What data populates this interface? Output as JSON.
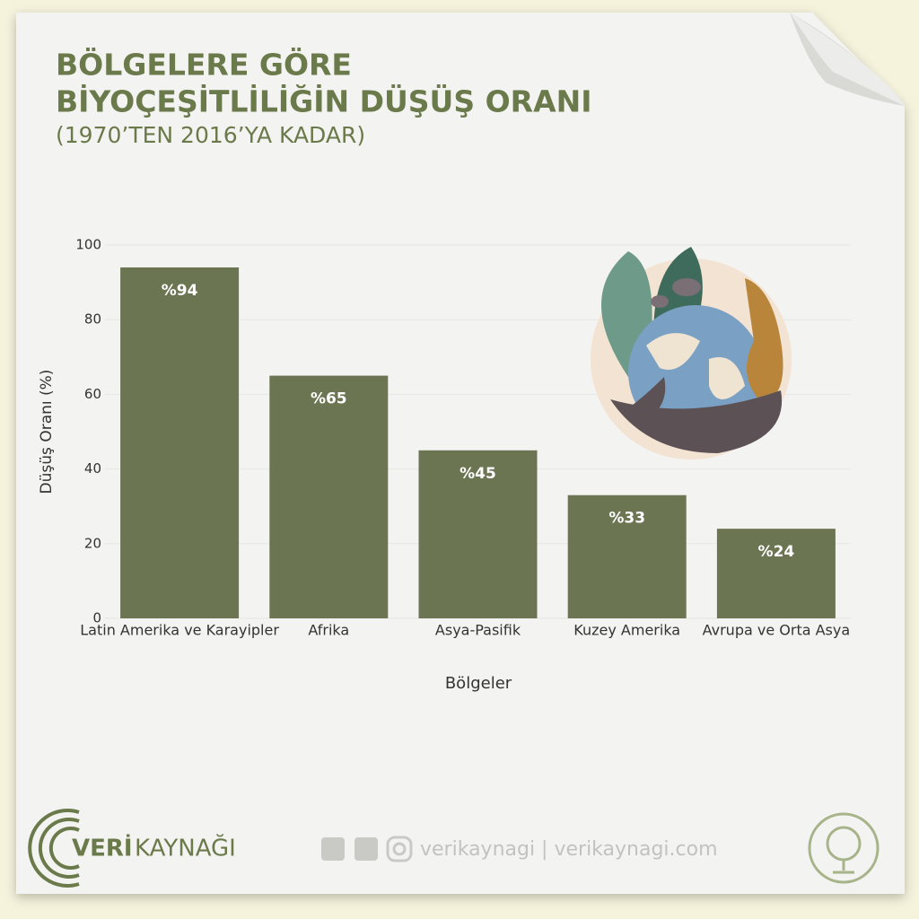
{
  "chart_data": {
    "type": "bar",
    "title_lines": [
      "BÖLGELERE GÖRE",
      "BİYOÇEŞİTLİLİĞİN DÜŞÜŞ ORANI"
    ],
    "subtitle": "(1970’TEN 2016’YA KADAR)",
    "y_label": "Düşüş Oranı (%)",
    "x_label": "Bölgeler",
    "categories": [
      "Latin Amerika ve Karayipler",
      "Afrika",
      "Asya-Pasifik",
      "Kuzey Amerika",
      "Avrupa ve Orta Asya"
    ],
    "values": [
      94,
      65,
      45,
      33,
      24
    ],
    "value_labels": [
      "%94",
      "%65",
      "%45",
      "%33",
      "%24"
    ],
    "color": "#6b7552",
    "ylim": [
      0,
      100
    ],
    "yticks": [
      0,
      20,
      40,
      60,
      80,
      100
    ],
    "grid": true
  },
  "footer": {
    "brand_bold": "VERİ",
    "brand_rest": "KAYNAĞI",
    "links": "verikaynagi | verikaynagi.com"
  }
}
